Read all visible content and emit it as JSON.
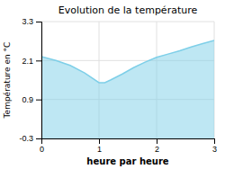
{
  "chart_data": {
    "type": "area",
    "title": "Evolution de la température",
    "xlabel": "heure par heure",
    "ylabel": "Température en °C",
    "x": [
      0,
      0.25,
      0.5,
      0.75,
      1.0,
      1.1,
      1.2,
      1.4,
      1.6,
      1.8,
      2.0,
      2.2,
      2.4,
      2.6,
      2.8,
      3.0
    ],
    "values": [
      2.22,
      2.1,
      1.95,
      1.72,
      1.42,
      1.42,
      1.5,
      1.68,
      1.88,
      2.05,
      2.2,
      2.3,
      2.4,
      2.52,
      2.62,
      2.72
    ],
    "color": "#7ecfe8",
    "xlim": [
      0,
      3
    ],
    "ylim": [
      -0.3,
      3.3
    ],
    "xticks": [
      0,
      1,
      2,
      3
    ],
    "yticks": [
      -0.3,
      0.9,
      2.1,
      3.3
    ],
    "grid": true
  }
}
